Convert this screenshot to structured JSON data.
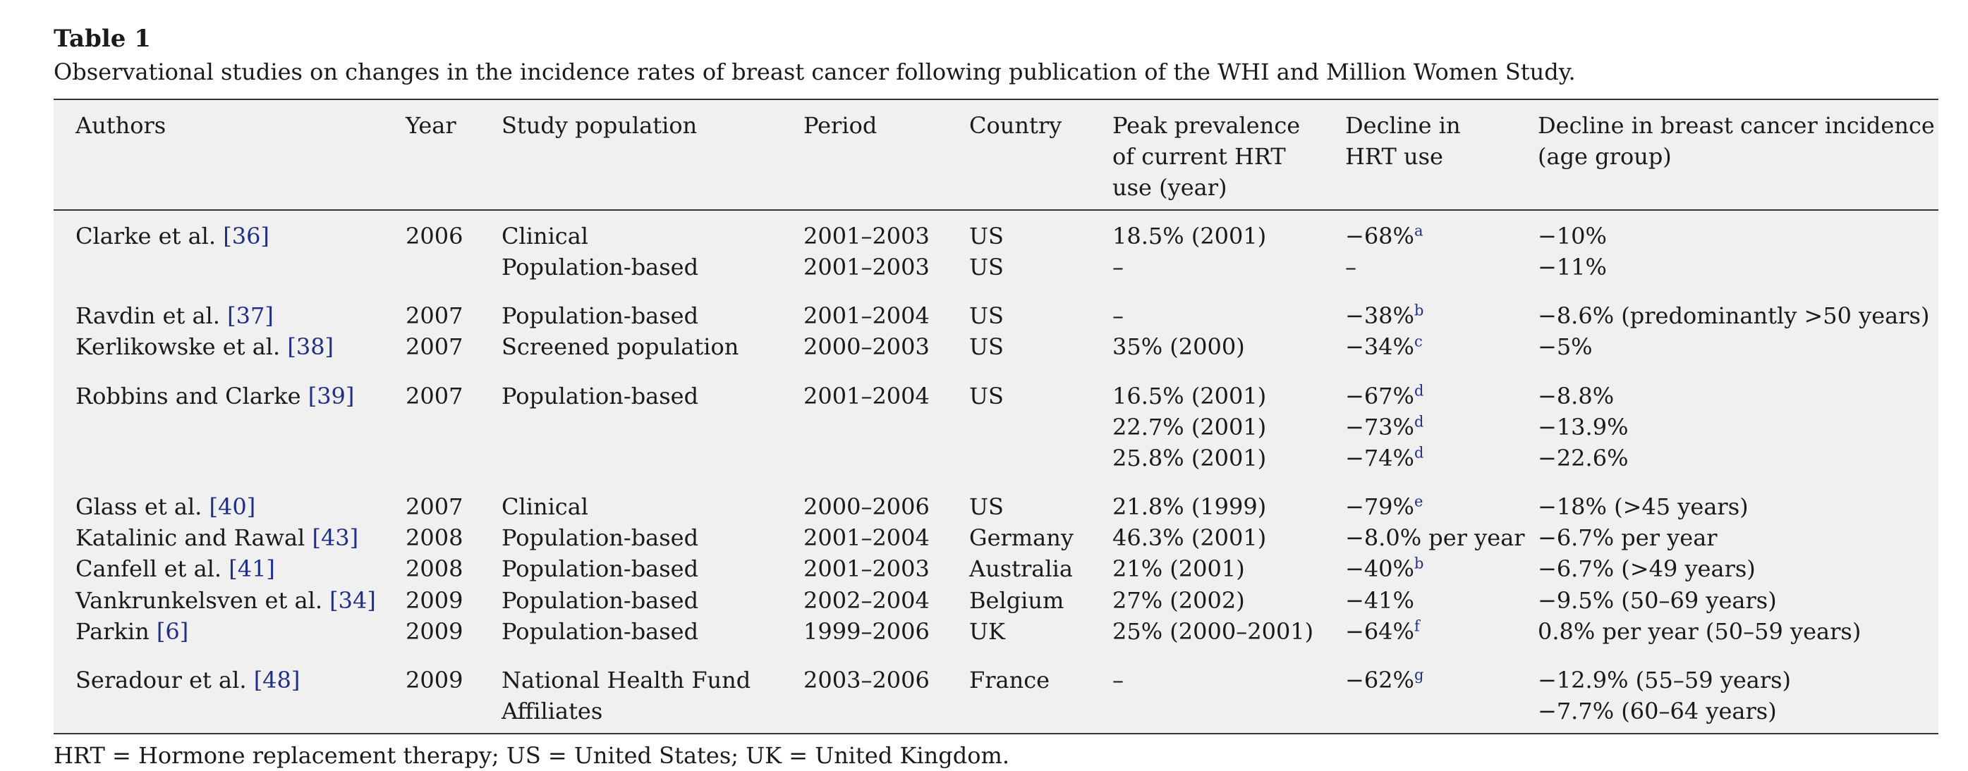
{
  "caption": {
    "title": "Table 1",
    "text": "Observational studies on changes in the incidence rates of breast cancer following publication of the WHI and Million Women Study."
  },
  "columns": {
    "authors": "Authors",
    "year": "Year",
    "population": "Study population",
    "period": "Period",
    "country": "Country",
    "peak": [
      "Peak prevalence",
      "of current HRT",
      "use (year)"
    ],
    "hrt": [
      "Decline in",
      "HRT use"
    ],
    "incidence": [
      "Decline in breast cancer incidence",
      "(age group)"
    ]
  },
  "rows": [
    {
      "name": "Clarke et al. ",
      "ref": "[36]",
      "year": "2006",
      "population": "Clinical",
      "period": "2001–2003",
      "country": "US",
      "peak": "18.5% (2001)",
      "hrt": "−68%",
      "hrt_sup": "a",
      "incidence": "−10%"
    },
    {
      "name": "",
      "ref": "",
      "year": "",
      "population": "Population-based",
      "period": "2001–2003",
      "country": "US",
      "peak": "–",
      "hrt": "–",
      "hrt_sup": "",
      "incidence": "−11%"
    },
    {
      "name": "Ravdin et al. ",
      "ref": "[37]",
      "year": "2007",
      "population": "Population-based",
      "period": "2001–2004",
      "country": "US",
      "peak": "–",
      "hrt": "−38%",
      "hrt_sup": "b",
      "incidence": "−8.6% (predominantly >50 years)"
    },
    {
      "name": "Kerlikowske et al. ",
      "ref": "[38]",
      "year": "2007",
      "population": "Screened population",
      "period": "2000–2003",
      "country": "US",
      "peak": "35% (2000)",
      "hrt": "−34%",
      "hrt_sup": "c",
      "incidence": "−5%"
    },
    {
      "name": "Robbins and Clarke ",
      "ref": "[39]",
      "year": "2007",
      "population": "Population-based",
      "period": "2001–2004",
      "country": "US",
      "peak": "16.5% (2001)",
      "hrt": "−67%",
      "hrt_sup": "d",
      "incidence": "−8.8%"
    },
    {
      "name": "",
      "ref": "",
      "year": "",
      "population": "",
      "period": "",
      "country": "",
      "peak": "22.7% (2001)",
      "hrt": "−73%",
      "hrt_sup": "d",
      "incidence": "−13.9%"
    },
    {
      "name": "",
      "ref": "",
      "year": "",
      "population": "",
      "period": "",
      "country": "",
      "peak": "25.8% (2001)",
      "hrt": "−74%",
      "hrt_sup": "d",
      "incidence": "−22.6%"
    },
    {
      "name": "Glass et al. ",
      "ref": "[40]",
      "year": "2007",
      "population": "Clinical",
      "period": "2000–2006",
      "country": "US",
      "peak": "21.8% (1999)",
      "hrt": "−79%",
      "hrt_sup": "e",
      "incidence": "−18% (>45 years)"
    },
    {
      "name": "Katalinic and Rawal ",
      "ref": "[43]",
      "year": "2008",
      "population": "Population-based",
      "period": "2001–2004",
      "country": "Germany",
      "peak": "46.3% (2001)",
      "hrt": "−8.0% per year",
      "hrt_sup": "",
      "incidence": "−6.7% per year"
    },
    {
      "name": "Canfell et al. ",
      "ref": "[41]",
      "year": "2008",
      "population": "Population-based",
      "period": "2001–2003",
      "country": "Australia",
      "peak": "21% (2001)",
      "hrt": "−40%",
      "hrt_sup": "b",
      "incidence": "−6.7% (>49 years)"
    },
    {
      "name": "Vankrunkelsven et al. ",
      "ref": "[34]",
      "year": "2009",
      "population": "Population-based",
      "period": "2002–2004",
      "country": "Belgium",
      "peak": "27% (2002)",
      "hrt": "−41%",
      "hrt_sup": "",
      "incidence": "−9.5% (50–69 years)"
    },
    {
      "name": "Parkin ",
      "ref": "[6]",
      "year": "2009",
      "population": "Population-based",
      "period": "1999–2006",
      "country": "UK",
      "peak": "25% (2000–2001)",
      "hrt": "−64%",
      "hrt_sup": "f",
      "incidence": "0.8% per year (50–59 years)"
    },
    {
      "name": "Seradour et al. ",
      "ref": "[48]",
      "year": "2009",
      "population": "National Health Fund",
      "period": "2003–2006",
      "country": "France",
      "peak": "–",
      "hrt": "−62%",
      "hrt_sup": "g",
      "incidence": "−12.9% (55–59 years)"
    },
    {
      "name": "",
      "ref": "",
      "year": "",
      "population": "Affiliates",
      "period": "",
      "country": "",
      "peak": "",
      "hrt": "",
      "hrt_sup": "",
      "incidence": "−7.7% (60–64 years)"
    }
  ],
  "footnote": "HRT = Hormone replacement therapy; US = United States; UK = United Kingdom."
}
